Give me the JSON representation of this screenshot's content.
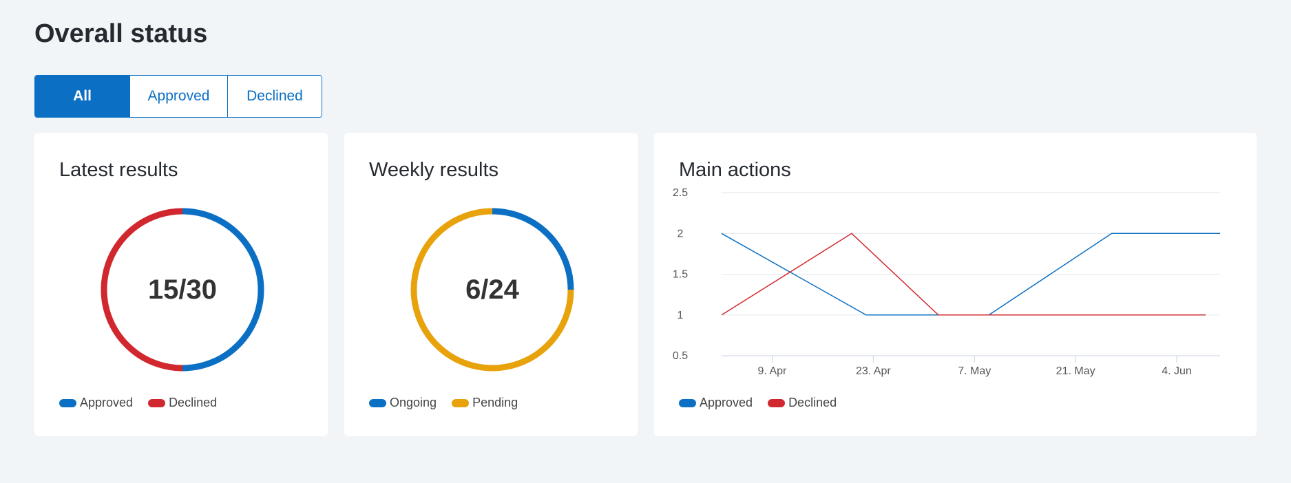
{
  "page": {
    "title": "Overall status"
  },
  "filters": [
    {
      "label": "All",
      "active": true
    },
    {
      "label": "Approved",
      "active": false
    },
    {
      "label": "Declined",
      "active": false
    }
  ],
  "colors": {
    "blue": "#0b6fc3",
    "red": "#d0282e",
    "orange": "#e8a20c",
    "background": "#f2f5f8"
  },
  "cards": {
    "latest": {
      "title": "Latest results",
      "center_text": "15/30",
      "segments": [
        {
          "name": "Approved",
          "value": 15,
          "color": "#0b6fc3"
        },
        {
          "name": "Declined",
          "value": 15,
          "color": "#d0282e"
        }
      ],
      "legend": [
        {
          "label": "Approved",
          "color": "#0b6fc3"
        },
        {
          "label": "Declined",
          "color": "#d0282e"
        }
      ]
    },
    "weekly": {
      "title": "Weekly results",
      "center_text": "6/24",
      "segments": [
        {
          "name": "Ongoing",
          "value": 6,
          "color": "#0b6fc3"
        },
        {
          "name": "Pending",
          "value": 18,
          "color": "#e8a20c"
        }
      ],
      "legend": [
        {
          "label": "Ongoing",
          "color": "#0b6fc3"
        },
        {
          "label": "Pending",
          "color": "#e8a20c"
        }
      ]
    },
    "main_actions": {
      "title": "Main actions",
      "legend": [
        {
          "label": "Approved",
          "color": "#0b6fc3"
        },
        {
          "label": "Declined",
          "color": "#d0282e"
        }
      ]
    }
  },
  "chart_data": {
    "type": "line",
    "title": "Main actions",
    "xlabel": "",
    "ylabel": "",
    "ylim": [
      0.5,
      2.5
    ],
    "yticks": [
      "0.5",
      "1",
      "1.5",
      "2",
      "2.5"
    ],
    "yticks_values": [
      0.5,
      1,
      1.5,
      2,
      2.5
    ],
    "xticks": [
      "9. Apr",
      "23. Apr",
      "7. May",
      "21. May",
      "4. Jun"
    ],
    "xticks_dates": [
      "2023-04-09",
      "2023-04-23",
      "2023-05-07",
      "2023-05-21",
      "2023-06-04"
    ],
    "xlim": [
      "2023-04-02",
      "2023-06-10"
    ],
    "grid": true,
    "legend_position": "bottom-left",
    "series": [
      {
        "name": "Approved",
        "color": "#0b6fc3",
        "x": [
          "2023-04-02",
          "2023-04-22",
          "2023-05-02",
          "2023-05-09",
          "2023-05-26",
          "2023-06-10"
        ],
        "values": [
          2,
          1,
          1,
          1,
          2,
          2
        ]
      },
      {
        "name": "Declined",
        "color": "#d0282e",
        "x": [
          "2023-04-02",
          "2023-04-20",
          "2023-05-02",
          "2023-05-09",
          "2023-06-08"
        ],
        "values": [
          1,
          2,
          1,
          1,
          1
        ]
      }
    ]
  }
}
